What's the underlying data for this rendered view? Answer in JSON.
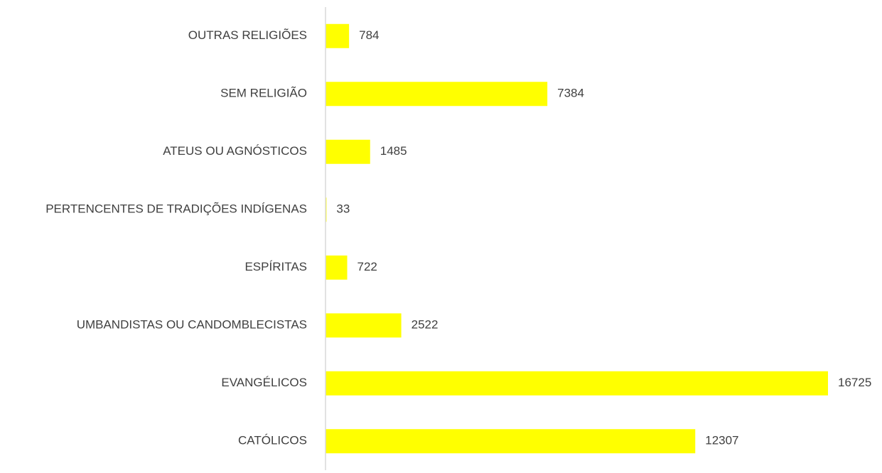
{
  "chart_data": {
    "type": "barh",
    "categories": [
      "OUTRAS RELIGIÕES",
      "SEM RELIGIÃO",
      "ATEUS OU AGNÓSTICOS",
      "PERTENCENTES DE TRADIÇÕES INDÍGENAS",
      "ESPÍRITAS",
      "UMBANDISTAS OU CANDOMBLECISTAS",
      "EVANGÉLICOS",
      "CATÓLICOS"
    ],
    "values": [
      784,
      7384,
      1485,
      33,
      722,
      2522,
      16725,
      12307
    ],
    "color": "#ffff00"
  }
}
